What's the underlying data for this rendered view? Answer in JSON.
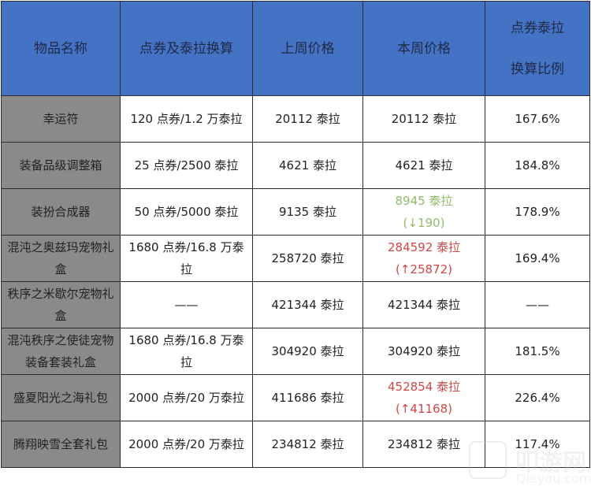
{
  "headers": [
    "物品名称",
    "点券及泰拉换算",
    "上周价格",
    "本周价格",
    "点券泰拉换算比例"
  ],
  "header_ratio_lines": [
    "点券泰拉",
    "换算比例"
  ],
  "colors": {
    "header_bg": "#4472c4",
    "name_bg": "#8a8a8a",
    "decrease": "#8fbc6a",
    "increase": "#d04646"
  },
  "rows": [
    {
      "name": "幸运符",
      "conversion": "120 点券/1.2 万泰拉",
      "last_week": "20112 泰拉",
      "this_week": "20112 泰拉",
      "change": "",
      "trend": "",
      "ratio": "167.6%"
    },
    {
      "name": "装备品级调整箱",
      "conversion": "25 点券/2500 泰拉",
      "last_week": "4621 泰拉",
      "this_week": "4621 泰拉",
      "change": "",
      "trend": "",
      "ratio": "184.8%"
    },
    {
      "name": "装扮合成器",
      "conversion": "50 点券/5000 泰拉",
      "last_week": "9135 泰拉",
      "this_week": "8945 泰拉",
      "change": "(↓190)",
      "trend": "down",
      "ratio": "178.9%"
    },
    {
      "name": "混沌之奥兹玛宠物礼盒",
      "conversion": "1680 点券/16.8 万泰拉",
      "last_week": "258720 泰拉",
      "this_week": "284592 泰拉",
      "change": "(↑25872)",
      "trend": "up",
      "ratio": "169.4%"
    },
    {
      "name": "秩序之米歇尔宠物礼盒",
      "conversion": "——",
      "last_week": "421344 泰拉",
      "this_week": "421344 泰拉",
      "change": "",
      "trend": "",
      "ratio": "——"
    },
    {
      "name": "混沌秩序之使徒宠物装备套装礼盒",
      "conversion": "1680 点券/16.8 万泰拉",
      "last_week": "304920 泰拉",
      "this_week": "304920 泰拉",
      "change": "",
      "trend": "",
      "ratio": "181.5%"
    },
    {
      "name": "盛夏阳光之海礼包",
      "conversion": "2000 点券/20 万泰拉",
      "last_week": "411686 泰拉",
      "this_week": "452854 泰拉",
      "change": "(↑41168)",
      "trend": "up",
      "ratio": "226.4%"
    },
    {
      "name": "腾翔映雪全套礼包",
      "conversion": "2000 点券/20 万泰拉",
      "last_week": "234812 泰拉",
      "this_week": "234812 泰拉",
      "change": "",
      "trend": "",
      "ratio": "117.4%"
    }
  ],
  "watermark": {
    "cn": "叩游网",
    "en": "Qieyou.com"
  }
}
